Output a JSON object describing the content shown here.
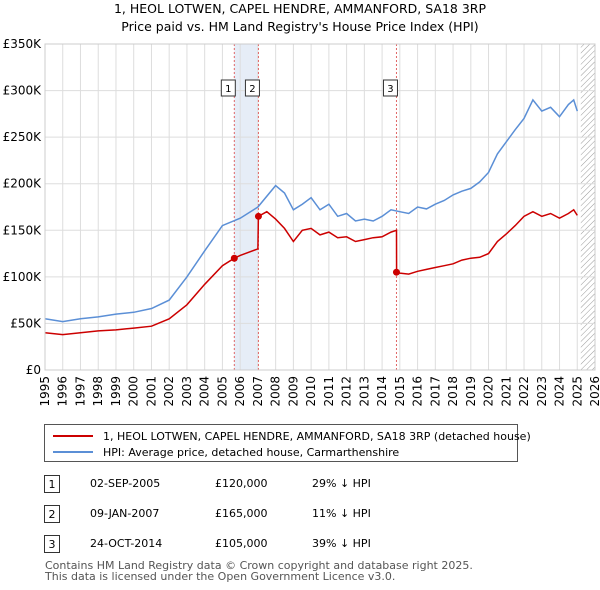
{
  "title_line1": "1, HEOL LOTWEN, CAPEL HENDRE, AMMANFORD, SA18 3RP",
  "title_line2": "Price paid vs. HM Land Registry's House Price Index (HPI)",
  "chart_data": {
    "type": "line",
    "title": "1, HEOL LOTWEN, CAPEL HENDRE, AMMANFORD, SA18 3RP — Price paid vs. HM Land Registry's House Price Index (HPI)",
    "xlim": [
      1995,
      2026
    ],
    "ylim": [
      0,
      350000
    ],
    "x_ticks": [
      "1995",
      "1996",
      "1997",
      "1998",
      "1999",
      "2000",
      "2001",
      "2002",
      "2003",
      "2004",
      "2005",
      "2006",
      "2007",
      "2008",
      "2009",
      "2010",
      "2011",
      "2012",
      "2013",
      "2014",
      "2015",
      "2016",
      "2017",
      "2018",
      "2019",
      "2020",
      "2021",
      "2022",
      "2023",
      "2024",
      "2025",
      "2026"
    ],
    "y_ticks": [
      {
        "value": 0,
        "label": "£0"
      },
      {
        "value": 50000,
        "label": "£50K"
      },
      {
        "value": 100000,
        "label": "£100K"
      },
      {
        "value": 150000,
        "label": "£150K"
      },
      {
        "value": 200000,
        "label": "£200K"
      },
      {
        "value": 250000,
        "label": "£250K"
      },
      {
        "value": 300000,
        "label": "£300K"
      },
      {
        "value": 350000,
        "label": "£350K"
      }
    ],
    "shaded_regions": [
      [
        2005.67,
        2007.03
      ]
    ],
    "hatched_region": [
      2025.2,
      2026
    ],
    "sale_markers": [
      {
        "label": "1",
        "x": 2005.67,
        "y": 120000
      },
      {
        "label": "2",
        "x": 2007.03,
        "y": 165000
      },
      {
        "label": "3",
        "x": 2014.81,
        "y": 105000
      }
    ],
    "series": [
      {
        "name": "1, HEOL LOTWEN, CAPEL HENDRE, AMMANFORD, SA18 3RP (detached house)",
        "color": "#cc0000",
        "points": [
          [
            1995,
            40000
          ],
          [
            1996,
            38000
          ],
          [
            1997,
            40000
          ],
          [
            1998,
            42000
          ],
          [
            1999,
            43000
          ],
          [
            2000,
            45000
          ],
          [
            2001,
            47000
          ],
          [
            2002,
            55000
          ],
          [
            2003,
            70000
          ],
          [
            2004,
            92000
          ],
          [
            2005,
            112000
          ],
          [
            2005.67,
            120000
          ],
          [
            2006,
            123000
          ],
          [
            2007,
            130000
          ],
          [
            2007.03,
            165000
          ],
          [
            2007.5,
            170000
          ],
          [
            2008,
            162000
          ],
          [
            2008.5,
            152000
          ],
          [
            2009,
            138000
          ],
          [
            2009.5,
            150000
          ],
          [
            2010,
            152000
          ],
          [
            2010.5,
            145000
          ],
          [
            2011,
            148000
          ],
          [
            2011.5,
            142000
          ],
          [
            2012,
            143000
          ],
          [
            2012.5,
            138000
          ],
          [
            2013,
            140000
          ],
          [
            2013.5,
            142000
          ],
          [
            2014,
            143000
          ],
          [
            2014.5,
            148000
          ],
          [
            2014.81,
            150000
          ],
          [
            2014.82,
            105000
          ],
          [
            2015,
            104000
          ],
          [
            2015.5,
            103000
          ],
          [
            2016,
            106000
          ],
          [
            2016.5,
            108000
          ],
          [
            2017,
            110000
          ],
          [
            2017.5,
            112000
          ],
          [
            2018,
            114000
          ],
          [
            2018.5,
            118000
          ],
          [
            2019,
            120000
          ],
          [
            2019.5,
            121000
          ],
          [
            2020,
            125000
          ],
          [
            2020.5,
            138000
          ],
          [
            2021,
            146000
          ],
          [
            2021.5,
            155000
          ],
          [
            2022,
            165000
          ],
          [
            2022.5,
            170000
          ],
          [
            2023,
            165000
          ],
          [
            2023.5,
            168000
          ],
          [
            2024,
            163000
          ],
          [
            2024.5,
            168000
          ],
          [
            2024.8,
            172000
          ],
          [
            2025,
            166000
          ]
        ]
      },
      {
        "name": "HPI: Average price, detached house, Carmarthenshire",
        "color": "#5b8fd6",
        "points": [
          [
            1995,
            55000
          ],
          [
            1996,
            52000
          ],
          [
            1997,
            55000
          ],
          [
            1998,
            57000
          ],
          [
            1999,
            60000
          ],
          [
            2000,
            62000
          ],
          [
            2001,
            66000
          ],
          [
            2002,
            75000
          ],
          [
            2003,
            100000
          ],
          [
            2004,
            128000
          ],
          [
            2005,
            155000
          ],
          [
            2006,
            163000
          ],
          [
            2007,
            175000
          ],
          [
            2008,
            198000
          ],
          [
            2008.5,
            190000
          ],
          [
            2009,
            172000
          ],
          [
            2009.5,
            178000
          ],
          [
            2010,
            185000
          ],
          [
            2010.5,
            172000
          ],
          [
            2011,
            178000
          ],
          [
            2011.5,
            165000
          ],
          [
            2012,
            168000
          ],
          [
            2012.5,
            160000
          ],
          [
            2013,
            162000
          ],
          [
            2013.5,
            160000
          ],
          [
            2014,
            165000
          ],
          [
            2014.5,
            172000
          ],
          [
            2015,
            170000
          ],
          [
            2015.5,
            168000
          ],
          [
            2016,
            175000
          ],
          [
            2016.5,
            173000
          ],
          [
            2017,
            178000
          ],
          [
            2017.5,
            182000
          ],
          [
            2018,
            188000
          ],
          [
            2018.5,
            192000
          ],
          [
            2019,
            195000
          ],
          [
            2019.5,
            202000
          ],
          [
            2020,
            212000
          ],
          [
            2020.5,
            232000
          ],
          [
            2021,
            245000
          ],
          [
            2021.5,
            258000
          ],
          [
            2022,
            270000
          ],
          [
            2022.5,
            290000
          ],
          [
            2023,
            278000
          ],
          [
            2023.5,
            282000
          ],
          [
            2024,
            272000
          ],
          [
            2024.5,
            285000
          ],
          [
            2024.8,
            290000
          ],
          [
            2025,
            278000
          ]
        ]
      }
    ]
  },
  "legend": {
    "items": [
      {
        "label": "1, HEOL LOTWEN, CAPEL HENDRE, AMMANFORD, SA18 3RP (detached house)",
        "color": "#cc0000"
      },
      {
        "label": "HPI: Average price, detached house, Carmarthenshire",
        "color": "#5b8fd6"
      }
    ]
  },
  "sales": [
    {
      "num": "1",
      "date": "02-SEP-2005",
      "price": "£120,000",
      "hpi": "29% ↓ HPI"
    },
    {
      "num": "2",
      "date": "09-JAN-2007",
      "price": "£165,000",
      "hpi": "11% ↓ HPI"
    },
    {
      "num": "3",
      "date": "24-OCT-2014",
      "price": "£105,000",
      "hpi": "39% ↓ HPI"
    }
  ],
  "footer": {
    "line1": "Contains HM Land Registry data © Crown copyright and database right 2025.",
    "line2": "This data is licensed under the Open Government Licence v3.0."
  }
}
